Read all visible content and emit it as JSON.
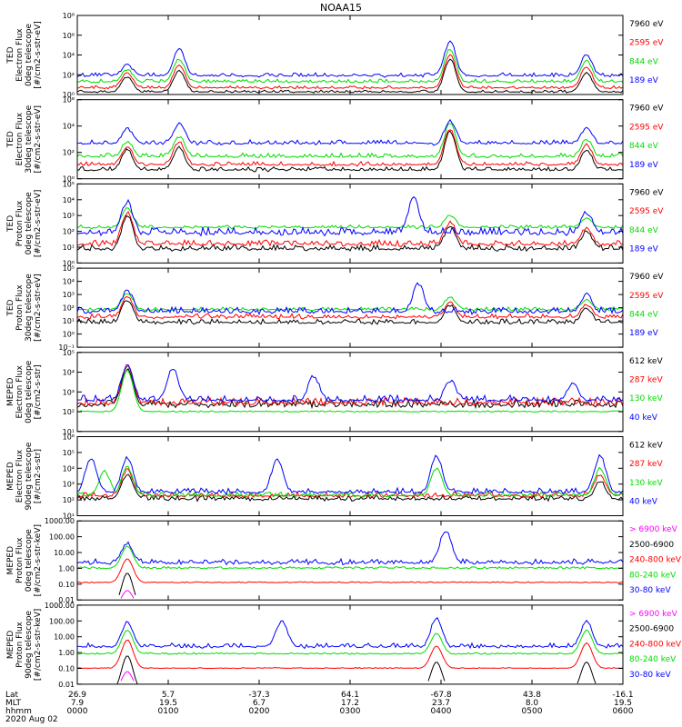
{
  "title": "NOAA15",
  "colors": {
    "black": "#000000",
    "red": "#ff0000",
    "green": "#00dd00",
    "blue": "#0000ff",
    "magenta": "#ff00ff"
  },
  "chart_data": [
    {
      "type": "line",
      "ylabel_lines": [
        "TED",
        "Electron Flux",
        "0deg telescope",
        "[#/cm2-s-str-eV]"
      ],
      "y_scale": "log",
      "ylim_exp": [
        0,
        8
      ],
      "ytick_labels": [
        "10⁰",
        "10²",
        "10⁴",
        "10⁶",
        "10⁸"
      ],
      "legend": [
        {
          "label": "7960 eV",
          "color": "black"
        },
        {
          "label": "2595 eV",
          "color": "red"
        },
        {
          "label": "844 eV",
          "color": "green"
        },
        {
          "label": "189 eV",
          "color": "blue"
        }
      ],
      "series": [
        {
          "legend": "7960 eV",
          "base": 0.2,
          "noise": 0.25,
          "passes": [
            [
              0.55,
              1.8
            ],
            [
              1.12,
              2.4
            ],
            [
              4.1,
              3.6
            ],
            [
              5.6,
              2.2
            ]
          ]
        },
        {
          "legend": "2595 eV",
          "base": 0.6,
          "noise": 0.3,
          "passes": [
            [
              0.55,
              2.2
            ],
            [
              1.12,
              3.0
            ],
            [
              4.1,
              4.0
            ],
            [
              5.6,
              2.8
            ]
          ]
        },
        {
          "legend": "844 eV",
          "base": 1.2,
          "noise": 0.35,
          "passes": [
            [
              0.55,
              2.5
            ],
            [
              1.12,
              3.6
            ],
            [
              4.1,
              4.6
            ],
            [
              5.6,
              3.4
            ]
          ]
        },
        {
          "legend": "189 eV",
          "base": 1.8,
          "noise": 0.4,
          "passes": [
            [
              0.55,
              3.0
            ],
            [
              1.12,
              4.6
            ],
            [
              4.1,
              5.4
            ],
            [
              5.6,
              4.0
            ]
          ]
        }
      ]
    },
    {
      "type": "line",
      "ylabel_lines": [
        "TED",
        "Electron Flux",
        "30deg telescope",
        "[#/cm2-s-str-eV]"
      ],
      "y_scale": "log",
      "ylim_exp": [
        0,
        6
      ],
      "ytick_labels": [
        "10⁰",
        "10²",
        "10⁴",
        "10⁶"
      ],
      "legend": [
        {
          "label": "7960 eV",
          "color": "black"
        },
        {
          "label": "2595 eV",
          "color": "red"
        },
        {
          "label": "844 eV",
          "color": "green"
        },
        {
          "label": "189 eV",
          "color": "blue"
        }
      ],
      "series": [
        {
          "legend": "7960 eV",
          "base": 0.6,
          "noise": 0.3,
          "passes": [
            [
              0.55,
              2.2
            ],
            [
              1.12,
              2.4
            ],
            [
              4.1,
              3.6
            ],
            [
              5.6,
              2.2
            ]
          ]
        },
        {
          "legend": "2595 eV",
          "base": 1.0,
          "noise": 0.3,
          "passes": [
            [
              0.55,
              2.4
            ],
            [
              1.12,
              2.8
            ],
            [
              4.1,
              3.8
            ],
            [
              5.6,
              2.6
            ]
          ]
        },
        {
          "legend": "844 eV",
          "base": 1.6,
          "noise": 0.35,
          "passes": [
            [
              0.55,
              2.8
            ],
            [
              1.12,
              3.2
            ],
            [
              4.1,
              4.2
            ],
            [
              5.6,
              3.0
            ]
          ]
        },
        {
          "legend": "189 eV",
          "base": 2.6,
          "noise": 0.35,
          "passes": [
            [
              0.55,
              3.8
            ],
            [
              1.12,
              4.2
            ],
            [
              4.1,
              4.4
            ],
            [
              5.6,
              3.8
            ]
          ]
        }
      ]
    },
    {
      "type": "line",
      "ylabel_lines": [
        "TED",
        "Proton Flux",
        "0deg telescope",
        "[#/cm2-s-str-eV]"
      ],
      "y_scale": "log",
      "ylim_exp": [
        0,
        5
      ],
      "ytick_labels": [
        "10⁰",
        "10¹",
        "10²",
        "10³",
        "10⁴",
        "10⁵"
      ],
      "legend": [
        {
          "label": "7960 eV",
          "color": "black"
        },
        {
          "label": "2595 eV",
          "color": "red"
        },
        {
          "label": "844 eV",
          "color": "green"
        },
        {
          "label": "189 eV",
          "color": "blue"
        }
      ],
      "series": [
        {
          "legend": "7960 eV",
          "base": 0.8,
          "noise": 0.35,
          "passes": [
            [
              0.55,
              3.0
            ],
            [
              4.1,
              2.4
            ],
            [
              5.6,
              2.0
            ]
          ]
        },
        {
          "legend": "2595 eV",
          "base": 1.1,
          "noise": 0.35,
          "passes": [
            [
              0.55,
              3.2
            ],
            [
              4.1,
              2.6
            ],
            [
              5.6,
              2.2
            ]
          ]
        },
        {
          "legend": "844 eV",
          "base": 2.2,
          "noise": 0.2,
          "passes": [
            [
              0.55,
              3.5
            ],
            [
              4.1,
              3.0
            ],
            [
              5.6,
              2.8
            ]
          ]
        },
        {
          "legend": "189 eV",
          "base": 1.8,
          "noise": 0.45,
          "passes": [
            [
              0.55,
              3.9
            ],
            [
              3.7,
              4.1
            ],
            [
              5.6,
              3.2
            ]
          ]
        }
      ]
    },
    {
      "type": "line",
      "ylabel_lines": [
        "TED",
        "Proton Flux",
        "30deg telescope",
        "[#/cm2-s-str-eV]"
      ],
      "y_scale": "log",
      "ylim_exp": [
        -1,
        5
      ],
      "ytick_labels": [
        "10⁻¹",
        "10⁰",
        "10¹",
        "10²",
        "10³",
        "10⁴",
        "10⁵"
      ],
      "legend": [
        {
          "label": "7960 eV",
          "color": "black"
        },
        {
          "label": "2595 eV",
          "color": "red"
        },
        {
          "label": "844 eV",
          "color": "green"
        },
        {
          "label": "189 eV",
          "color": "blue"
        }
      ],
      "series": [
        {
          "legend": "7960 eV",
          "base": 0.8,
          "noise": 0.35,
          "passes": [
            [
              0.55,
              2.6
            ],
            [
              4.1,
              2.2
            ],
            [
              5.6,
              2.0
            ]
          ]
        },
        {
          "legend": "2595 eV",
          "base": 1.2,
          "noise": 0.35,
          "passes": [
            [
              0.55,
              2.8
            ],
            [
              4.1,
              2.4
            ],
            [
              5.6,
              2.2
            ]
          ]
        },
        {
          "legend": "844 eV",
          "base": 1.8,
          "noise": 0.25,
          "passes": [
            [
              0.55,
              3.1
            ],
            [
              4.1,
              2.8
            ],
            [
              5.6,
              2.6
            ]
          ]
        },
        {
          "legend": "189 eV",
          "base": 1.6,
          "noise": 0.45,
          "passes": [
            [
              0.55,
              3.3
            ],
            [
              3.75,
              3.8
            ],
            [
              5.6,
              3.0
            ]
          ]
        }
      ]
    },
    {
      "type": "line",
      "ylabel_lines": [
        "MEPED",
        "Electron Flux",
        "0deg telescope",
        "[#/cm2-s-str]"
      ],
      "y_scale": "log",
      "ylim_exp": [
        1,
        5
      ],
      "ytick_labels": [
        "10¹",
        "10²",
        "10³",
        "10⁴",
        "10⁵"
      ],
      "legend": [
        {
          "label": "612 keV",
          "color": "black"
        },
        {
          "label": "287 keV",
          "color": "red"
        },
        {
          "label": "130 keV",
          "color": "green"
        },
        {
          "label": "40 keV",
          "color": "blue"
        }
      ],
      "series": [
        {
          "legend": "612 keV",
          "base": 2.3,
          "noise": 0.3,
          "passes": [
            [
              0.55,
              4.2
            ]
          ]
        },
        {
          "legend": "287 keV",
          "base": 2.4,
          "noise": 0.3,
          "passes": [
            [
              0.55,
              4.3
            ]
          ]
        },
        {
          "legend": "130 keV",
          "base": 2.0,
          "noise": 0.05,
          "passes": [
            [
              0.55,
              4.1
            ]
          ]
        },
        {
          "legend": "40 keV",
          "base": 2.5,
          "noise": 0.35,
          "passes": [
            [
              0.55,
              4.4
            ],
            [
              1.05,
              4.2
            ],
            [
              2.6,
              3.8
            ],
            [
              4.1,
              3.6
            ],
            [
              5.45,
              3.4
            ]
          ]
        }
      ]
    },
    {
      "type": "line",
      "ylabel_lines": [
        "MEPED",
        "Electron Flux",
        "90deg telescope",
        "[#/cm2-s-str]"
      ],
      "y_scale": "log",
      "ylim_exp": [
        1,
        6
      ],
      "ytick_labels": [
        "10¹",
        "10²",
        "10³",
        "10⁴",
        "10⁵",
        "10⁶"
      ],
      "legend": [
        {
          "label": "612 keV",
          "color": "black"
        },
        {
          "label": "287 keV",
          "color": "red"
        },
        {
          "label": "130 keV",
          "color": "green"
        },
        {
          "label": "40 keV",
          "color": "blue"
        }
      ],
      "series": [
        {
          "legend": "612 keV",
          "base": 2.0,
          "noise": 0.3,
          "passes": [
            [
              0.55,
              3.6
            ],
            [
              5.75,
              3.2
            ]
          ]
        },
        {
          "legend": "287 keV",
          "base": 2.2,
          "noise": 0.3,
          "passes": [
            [
              0.55,
              3.9
            ],
            [
              5.75,
              3.6
            ]
          ]
        },
        {
          "legend": "130 keV",
          "base": 2.2,
          "noise": 0.3,
          "passes": [
            [
              0.3,
              3.8
            ],
            [
              0.55,
              4.1
            ],
            [
              3.95,
              4.0
            ],
            [
              5.75,
              4.0
            ]
          ]
        },
        {
          "legend": "40 keV",
          "base": 2.4,
          "noise": 0.35,
          "passes": [
            [
              0.15,
              4.6
            ],
            [
              0.55,
              4.7
            ],
            [
              2.2,
              4.6
            ],
            [
              3.95,
              4.8
            ],
            [
              5.75,
              4.8
            ]
          ]
        }
      ]
    },
    {
      "type": "line",
      "ylabel_lines": [
        "MEPED",
        "Proton Flux",
        "0deg telescope",
        "[#/cm2-s-str-keV]"
      ],
      "y_scale": "log",
      "ylim_exp": [
        -2,
        3
      ],
      "ytick_labels": [
        "0.01",
        "0.10",
        "1.00",
        "10.00",
        "100.00",
        "1000.00"
      ],
      "legend": [
        {
          "label": "> 6900 keV",
          "color": "magenta"
        },
        {
          "label": "2500-6900",
          "color": "black"
        },
        {
          "label": "240-800 keV",
          "color": "red"
        },
        {
          "label": "80-240 keV",
          "color": "green"
        },
        {
          "label": "30-80 keV",
          "color": "blue"
        }
      ],
      "series": [
        {
          "legend": "> 6900 keV",
          "base": -2.5,
          "noise": 0.0,
          "passes": [
            [
              0.55,
              -1.4
            ]
          ]
        },
        {
          "legend": "2500-6900",
          "base": -2.5,
          "noise": 0.0,
          "passes": [
            [
              0.55,
              -0.3
            ]
          ]
        },
        {
          "legend": "240-800 keV",
          "base": -0.9,
          "noise": 0.05,
          "passes": [
            [
              0.55,
              0.6
            ]
          ]
        },
        {
          "legend": "80-240 keV",
          "base": 0.0,
          "noise": 0.1,
          "passes": [
            [
              0.55,
              1.4
            ]
          ]
        },
        {
          "legend": "30-80 keV",
          "base": 0.3,
          "noise": 0.3,
          "passes": [
            [
              0.55,
              1.6
            ],
            [
              4.05,
              2.4
            ]
          ]
        }
      ]
    },
    {
      "type": "line",
      "ylabel_lines": [
        "MEPED",
        "Proton Flux",
        "90deg telescope",
        "[#/cm2-s-str-keV]"
      ],
      "y_scale": "log",
      "ylim_exp": [
        -2,
        3
      ],
      "ytick_labels": [
        "0.01",
        "0.10",
        "1.00",
        "10.00",
        "100.00",
        "1000.00"
      ],
      "legend": [
        {
          "label": "> 6900 keV",
          "color": "magenta"
        },
        {
          "label": "2500-6900",
          "color": "black"
        },
        {
          "label": "240-800 keV",
          "color": "red"
        },
        {
          "label": "80-240 keV",
          "color": "green"
        },
        {
          "label": "30-80 keV",
          "color": "blue"
        }
      ],
      "series": [
        {
          "legend": "> 6900 keV",
          "base": -2.5,
          "noise": 0.0,
          "passes": [
            [
              0.55,
              -1.2
            ]
          ]
        },
        {
          "legend": "2500-6900",
          "base": -2.5,
          "noise": 0.0,
          "passes": [
            [
              0.55,
              -0.2
            ],
            [
              3.95,
              -0.6
            ],
            [
              5.6,
              -0.6
            ]
          ]
        },
        {
          "legend": "240-800 keV",
          "base": -1.0,
          "noise": 0.05,
          "passes": [
            [
              0.55,
              0.8
            ],
            [
              3.95,
              0.4
            ],
            [
              5.6,
              0.6
            ]
          ]
        },
        {
          "legend": "80-240 keV",
          "base": -0.1,
          "noise": 0.1,
          "passes": [
            [
              0.55,
              1.4
            ],
            [
              3.95,
              1.2
            ],
            [
              5.6,
              1.4
            ]
          ]
        },
        {
          "legend": "30-80 keV",
          "base": 0.3,
          "noise": 0.3,
          "passes": [
            [
              0.55,
              1.9
            ],
            [
              2.25,
              2.0
            ],
            [
              3.95,
              2.2
            ],
            [
              5.6,
              2.0
            ]
          ]
        }
      ]
    }
  ],
  "x_axis": {
    "range_hours": [
      0,
      6
    ],
    "row_labels": [
      "Lat",
      "MLT",
      "hhmm"
    ],
    "ticks": [
      {
        "hour": 0,
        "lat": "26.9",
        "mlt": "7.9",
        "hhmm": "0000"
      },
      {
        "hour": 1,
        "lat": "5.7",
        "mlt": "19.5",
        "hhmm": "0100"
      },
      {
        "hour": 2,
        "lat": "-37.3",
        "mlt": "6.7",
        "hhmm": "0200"
      },
      {
        "hour": 3,
        "lat": "64.1",
        "mlt": "17.2",
        "hhmm": "0300"
      },
      {
        "hour": 4,
        "lat": "-67.8",
        "mlt": "23.7",
        "hhmm": "0400"
      },
      {
        "hour": 5,
        "lat": "43.8",
        "mlt": "8.0",
        "hhmm": "0500"
      },
      {
        "hour": 6,
        "lat": "-16.1",
        "mlt": "19.5",
        "hhmm": "0600"
      }
    ],
    "date": "2020 Aug 02"
  }
}
